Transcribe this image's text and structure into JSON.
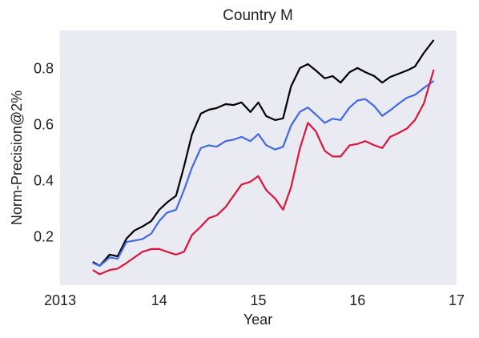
{
  "chart_data": {
    "type": "line",
    "title": "Country M",
    "x_label": "Year",
    "y_label": "Norm-Precision@2%",
    "x": [
      2013.33,
      2013.4,
      2013.5,
      2013.58,
      2013.67,
      2013.75,
      2013.83,
      2013.92,
      2014.0,
      2014.08,
      2014.17,
      2014.25,
      2014.33,
      2014.42,
      2014.5,
      2014.58,
      2014.67,
      2014.75,
      2014.83,
      2014.92,
      2015.0,
      2015.08,
      2015.17,
      2015.25,
      2015.33,
      2015.42,
      2015.5,
      2015.58,
      2015.67,
      2015.75,
      2015.83,
      2015.92,
      2016.0,
      2016.08,
      2016.17,
      2016.25,
      2016.33,
      2016.42,
      2016.5,
      2016.58,
      2016.67,
      2016.77
    ],
    "series": [
      {
        "color": "#000000",
        "values": [
          0.114,
          0.1,
          0.14,
          0.134,
          0.197,
          0.226,
          0.24,
          0.26,
          0.3,
          0.326,
          0.35,
          0.454,
          0.569,
          0.643,
          0.657,
          0.663,
          0.677,
          0.674,
          0.683,
          0.649,
          0.683,
          0.634,
          0.62,
          0.626,
          0.74,
          0.806,
          0.82,
          0.797,
          0.769,
          0.777,
          0.754,
          0.791,
          0.806,
          0.791,
          0.777,
          0.754,
          0.774,
          0.786,
          0.797,
          0.811,
          0.86,
          0.906
        ]
      },
      {
        "color": "#4169e1",
        "values": [
          0.11,
          0.1,
          0.13,
          0.125,
          0.185,
          0.19,
          0.195,
          0.215,
          0.26,
          0.29,
          0.3,
          0.37,
          0.45,
          0.52,
          0.53,
          0.525,
          0.545,
          0.55,
          0.56,
          0.545,
          0.57,
          0.53,
          0.515,
          0.525,
          0.6,
          0.65,
          0.665,
          0.64,
          0.61,
          0.625,
          0.62,
          0.665,
          0.69,
          0.695,
          0.67,
          0.635,
          0.655,
          0.68,
          0.7,
          0.71,
          0.735,
          0.76
        ]
      },
      {
        "color": "#dc143c",
        "values": [
          0.085,
          0.07,
          0.085,
          0.09,
          0.11,
          0.13,
          0.15,
          0.16,
          0.16,
          0.15,
          0.14,
          0.15,
          0.21,
          0.24,
          0.27,
          0.28,
          0.31,
          0.35,
          0.39,
          0.4,
          0.42,
          0.37,
          0.34,
          0.3,
          0.38,
          0.52,
          0.61,
          0.58,
          0.51,
          0.49,
          0.49,
          0.53,
          0.535,
          0.545,
          0.53,
          0.52,
          0.56,
          0.575,
          0.59,
          0.62,
          0.68,
          0.8
        ]
      }
    ],
    "xlim": [
      2013,
      2017
    ],
    "xticks": [
      2013,
      {
        "value": 2014,
        "label": "14"
      },
      {
        "value": 2015,
        "label": "15"
      },
      {
        "value": 2016,
        "label": "16"
      },
      {
        "value": 2017,
        "label": "17"
      }
    ],
    "ylim": [
      0.031,
      0.94
    ],
    "yticks": [
      0.2,
      0.4,
      0.6,
      0.8
    ],
    "background": "#eaeaf2"
  }
}
